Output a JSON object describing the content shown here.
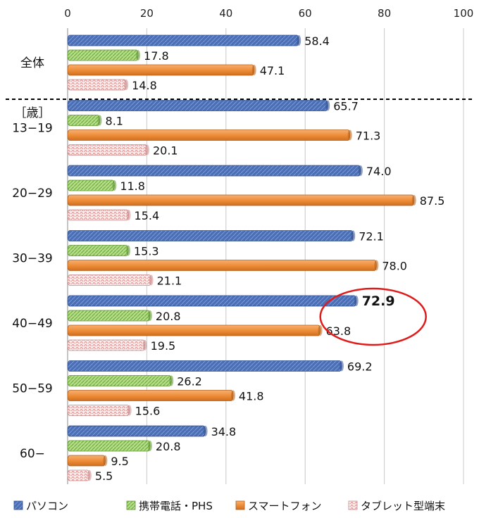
{
  "chart_data": {
    "type": "bar",
    "orientation": "horizontal",
    "xlim": [
      0,
      100
    ],
    "x_ticks": [
      "0",
      "20",
      "40",
      "60",
      "80",
      "100"
    ],
    "grid": true,
    "legend_position": "bottom",
    "age_unit_label": "［歳］",
    "categories": [
      "全体",
      "13−19",
      "20−29",
      "30−39",
      "40−49",
      "50−59",
      "60−"
    ],
    "series": [
      {
        "name": "パソコン",
        "color": "#4a6fb5",
        "values": [
          58.4,
          65.7,
          74.0,
          72.1,
          72.9,
          69.2,
          34.8
        ],
        "labels": [
          "58.4",
          "65.7",
          "74.0",
          "72.1",
          "72.9",
          "69.2",
          "34.8"
        ]
      },
      {
        "name": "携帯電話・PHS",
        "color": "#8ec456",
        "values": [
          17.8,
          8.1,
          11.8,
          15.3,
          20.8,
          26.2,
          20.8
        ],
        "labels": [
          "17.8",
          "8.1",
          "11.8",
          "15.3",
          "20.8",
          "26.2",
          "20.8"
        ]
      },
      {
        "name": "スマートフォン",
        "color": "#ee8e3a",
        "values": [
          47.1,
          71.3,
          87.5,
          78.0,
          63.8,
          41.8,
          9.5
        ],
        "labels": [
          "47.1",
          "71.3",
          "87.5",
          "78.0",
          "63.8",
          "41.8",
          "9.5"
        ]
      },
      {
        "name": "タブレット型端末",
        "color": "#e7b0b0",
        "values": [
          14.8,
          20.1,
          15.4,
          21.1,
          19.5,
          15.6,
          5.5
        ],
        "labels": [
          "14.8",
          "20.1",
          "15.4",
          "21.1",
          "19.5",
          "15.6",
          "5.5"
        ]
      }
    ],
    "highlight": {
      "category": "40−49",
      "series": "パソコン",
      "value": 72.9
    }
  }
}
